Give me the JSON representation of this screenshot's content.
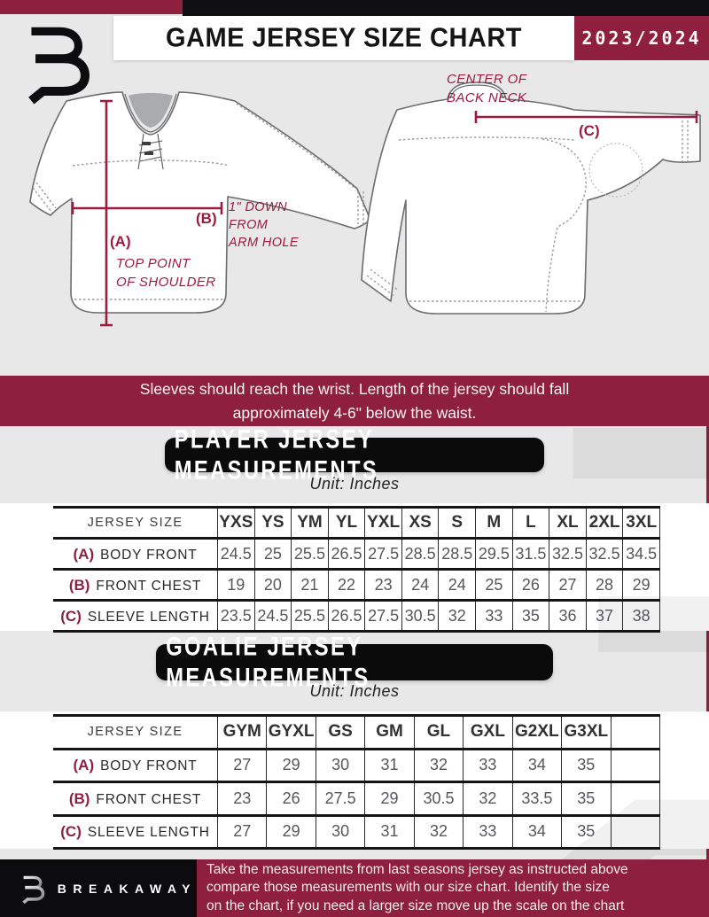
{
  "header": {
    "title": "GAME JERSEY SIZE CHART",
    "season": "2023/2024"
  },
  "diagram": {
    "front": {
      "label_a": "(A)",
      "label_a_desc": "TOP POINT\nOF SHOULDER",
      "label_b": "(B)",
      "label_b_desc": "1\" DOWN\nFROM\nARM HOLE"
    },
    "back": {
      "label_c": "(C)",
      "label_c_desc": "CENTER OF\nBACK NECK"
    }
  },
  "banner": {
    "text": "Sleeves should reach the wrist. Length of the jersey should fall\napproximately 4-6\" below the waist."
  },
  "player_table": {
    "title": "PLAYER JERSEY MEASUREMENTS",
    "unit": "Unit: Inches",
    "header": [
      "JERSEY SIZE",
      "YXS",
      "YS",
      "YM",
      "YL",
      "YXL",
      "XS",
      "S",
      "M",
      "L",
      "XL",
      "2XL",
      "3XL"
    ],
    "rows": [
      {
        "key": "(A)",
        "label": "BODY FRONT",
        "values": [
          "24.5",
          "25",
          "25.5",
          "26.5",
          "27.5",
          "28.5",
          "28.5",
          "29.5",
          "31.5",
          "32.5",
          "32.5",
          "34.5"
        ]
      },
      {
        "key": "(B)",
        "label": "FRONT CHEST",
        "values": [
          "19",
          "20",
          "21",
          "22",
          "23",
          "24",
          "24",
          "25",
          "26",
          "27",
          "28",
          "29"
        ]
      },
      {
        "key": "(C)",
        "label": "SLEEVE LENGTH",
        "values": [
          "23.5",
          "24.5",
          "25.5",
          "26.5",
          "27.5",
          "30.5",
          "32",
          "33",
          "35",
          "36",
          "37",
          "38"
        ]
      }
    ]
  },
  "goalie_table": {
    "title": "GOALIE JERSEY MEASUREMENTS",
    "unit": "Unit: Inches",
    "header": [
      "JERSEY SIZE",
      "GYM",
      "GYXL",
      "GS",
      "GM",
      "GL",
      "GXL",
      "G2XL",
      "G3XL",
      ""
    ],
    "rows": [
      {
        "key": "(A)",
        "label": "BODY FRONT",
        "values": [
          "27",
          "29",
          "30",
          "31",
          "32",
          "33",
          "34",
          "35",
          ""
        ]
      },
      {
        "key": "(B)",
        "label": "FRONT CHEST",
        "values": [
          "23",
          "26",
          "27.5",
          "29",
          "30.5",
          "32",
          "33.5",
          "35",
          ""
        ]
      },
      {
        "key": "(C)",
        "label": "SLEEVE LENGTH",
        "values": [
          "27",
          "29",
          "30",
          "31",
          "32",
          "33",
          "34",
          "35",
          ""
        ]
      }
    ]
  },
  "footer": {
    "brand": "BREAKAWAY",
    "text": "Take the measurements from last seasons jersey as instructed above\ncompare those measurements  with our size chart. Identify the size\non the chart, if you need a larger size move up the scale on the chart"
  },
  "colors": {
    "maroon": "#8e1f3f",
    "black": "#0c0c0e",
    "page_bg": "#e8e8e9",
    "white": "#ffffff",
    "value_text": "#56575b",
    "jersey_outline": "#6b6c6f",
    "neck_fill": "#a9abae"
  }
}
